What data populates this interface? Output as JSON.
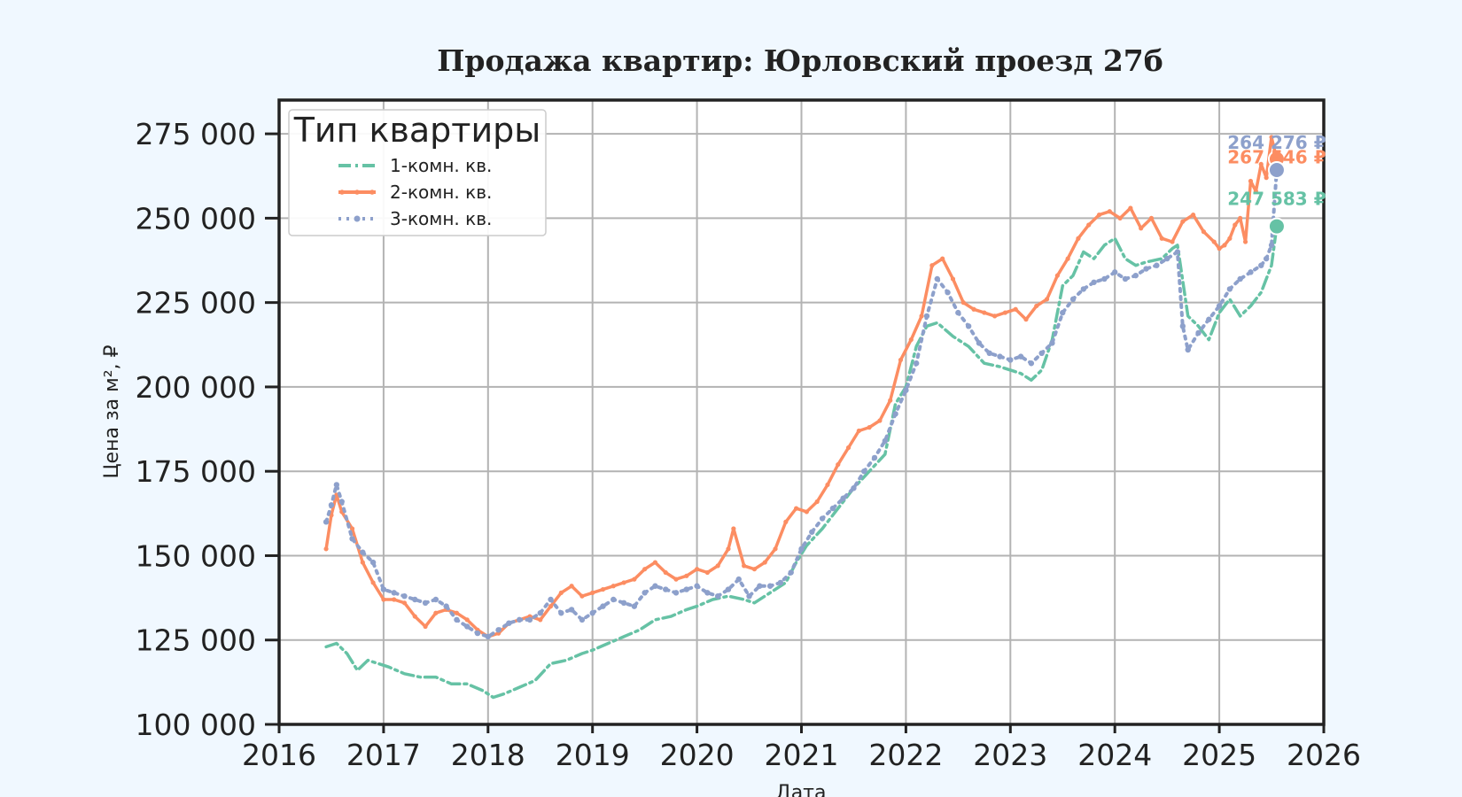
{
  "chart_data": {
    "type": "line",
    "title": "Продажа квартир: Юрловский проезд 27б",
    "xlabel": "Дата",
    "ylabel": "Цена за м², ₽",
    "xlim": [
      2016,
      2026
    ],
    "ylim": [
      100000,
      285000
    ],
    "x_ticks": [
      2016,
      2017,
      2018,
      2019,
      2020,
      2021,
      2022,
      2023,
      2024,
      2025,
      2026
    ],
    "x_tick_labels": [
      "2016",
      "2017",
      "2018",
      "2019",
      "2020",
      "2021",
      "2022",
      "2023",
      "2024",
      "2025",
      "2026"
    ],
    "y_ticks": [
      100000,
      125000,
      150000,
      175000,
      200000,
      225000,
      250000,
      275000
    ],
    "y_tick_labels": [
      "100 000",
      "125 000",
      "150 000",
      "175 000",
      "200 000",
      "225 000",
      "250 000",
      "275 000"
    ],
    "grid": true,
    "legend": {
      "title": "Тип квартиры",
      "position": "top-left",
      "entries": [
        "1-комн. кв.",
        "2-комн. кв.",
        "3-комн. кв."
      ]
    },
    "series": [
      {
        "name": "1-комн. кв.",
        "color": "#66c2a5",
        "style": "dashdot",
        "last_value": 247583,
        "last_label": "247 583 ₽",
        "x": [
          2016.45,
          2016.55,
          2016.65,
          2016.75,
          2016.85,
          2016.95,
          2017.05,
          2017.2,
          2017.35,
          2017.5,
          2017.65,
          2017.8,
          2017.95,
          2018.05,
          2018.15,
          2018.3,
          2018.45,
          2018.6,
          2018.75,
          2018.9,
          2019.0,
          2019.15,
          2019.3,
          2019.45,
          2019.6,
          2019.75,
          2019.9,
          2020.0,
          2020.15,
          2020.3,
          2020.45,
          2020.55,
          2020.7,
          2020.85,
          2020.95,
          2021.05,
          2021.2,
          2021.35,
          2021.5,
          2021.65,
          2021.8,
          2021.9,
          2022.0,
          2022.1,
          2022.2,
          2022.3,
          2022.45,
          2022.6,
          2022.75,
          2022.9,
          2023.0,
          2023.1,
          2023.2,
          2023.3,
          2023.4,
          2023.5,
          2023.6,
          2023.7,
          2023.8,
          2023.9,
          2024.0,
          2024.1,
          2024.2,
          2024.3,
          2024.45,
          2024.55,
          2024.6,
          2024.7,
          2024.8,
          2024.9,
          2025.0,
          2025.1,
          2025.2,
          2025.3,
          2025.4,
          2025.5,
          2025.55
        ],
        "y": [
          123000,
          124000,
          121000,
          116000,
          119000,
          118000,
          117000,
          115000,
          114000,
          114000,
          112000,
          112000,
          110000,
          108000,
          109000,
          111000,
          113000,
          118000,
          119000,
          121000,
          122000,
          124000,
          126000,
          128000,
          131000,
          132000,
          134000,
          135000,
          137000,
          138000,
          137000,
          136000,
          139000,
          142000,
          148000,
          153000,
          158000,
          164000,
          170000,
          175000,
          180000,
          195000,
          200000,
          212000,
          218000,
          219000,
          215000,
          212000,
          207000,
          206000,
          205000,
          204000,
          202000,
          205000,
          214000,
          230000,
          233000,
          240000,
          238000,
          242000,
          244000,
          238000,
          236000,
          237000,
          238000,
          241000,
          242000,
          221000,
          218000,
          214000,
          222000,
          226000,
          221000,
          224000,
          228000,
          236000,
          247583
        ]
      },
      {
        "name": "2-комн. кв.",
        "color": "#fc8d62",
        "style": "solid-marker",
        "last_value": 267546,
        "last_label": "267 546 ₽",
        "x": [
          2016.45,
          2016.5,
          2016.55,
          2016.6,
          2016.7,
          2016.8,
          2016.9,
          2017.0,
          2017.1,
          2017.2,
          2017.3,
          2017.4,
          2017.5,
          2017.6,
          2017.7,
          2017.8,
          2017.9,
          2018.0,
          2018.1,
          2018.2,
          2018.3,
          2018.4,
          2018.5,
          2018.6,
          2018.7,
          2018.8,
          2018.9,
          2019.0,
          2019.1,
          2019.2,
          2019.3,
          2019.4,
          2019.5,
          2019.6,
          2019.7,
          2019.8,
          2019.9,
          2020.0,
          2020.1,
          2020.2,
          2020.3,
          2020.35,
          2020.45,
          2020.55,
          2020.65,
          2020.75,
          2020.85,
          2020.95,
          2021.05,
          2021.15,
          2021.25,
          2021.35,
          2021.45,
          2021.55,
          2021.65,
          2021.75,
          2021.85,
          2021.95,
          2022.05,
          2022.15,
          2022.25,
          2022.35,
          2022.45,
          2022.55,
          2022.65,
          2022.75,
          2022.85,
          2022.95,
          2023.05,
          2023.15,
          2023.25,
          2023.35,
          2023.45,
          2023.55,
          2023.65,
          2023.75,
          2023.85,
          2023.95,
          2024.05,
          2024.15,
          2024.25,
          2024.35,
          2024.45,
          2024.55,
          2024.65,
          2024.75,
          2024.85,
          2024.95,
          2025.0,
          2025.05,
          2025.1,
          2025.15,
          2025.2,
          2025.25,
          2025.3,
          2025.35,
          2025.4,
          2025.45,
          2025.5,
          2025.55
        ],
        "y": [
          152000,
          162000,
          168000,
          163000,
          158000,
          148000,
          142000,
          137000,
          137000,
          136000,
          132000,
          129000,
          133000,
          134000,
          133000,
          131000,
          128000,
          126000,
          127000,
          130000,
          131000,
          132000,
          131000,
          135000,
          139000,
          141000,
          138000,
          139000,
          140000,
          141000,
          142000,
          143000,
          146000,
          148000,
          145000,
          143000,
          144000,
          146000,
          145000,
          147000,
          152000,
          158000,
          147000,
          146000,
          148000,
          152000,
          160000,
          164000,
          163000,
          166000,
          171000,
          177000,
          182000,
          187000,
          188000,
          190000,
          196000,
          208000,
          214000,
          221000,
          236000,
          238000,
          232000,
          225000,
          223000,
          222000,
          221000,
          222000,
          223000,
          220000,
          224000,
          226000,
          233000,
          238000,
          244000,
          248000,
          251000,
          252000,
          250000,
          253000,
          247000,
          250000,
          244000,
          243000,
          249000,
          251000,
          246000,
          243000,
          241000,
          242000,
          244000,
          248000,
          250000,
          243000,
          261000,
          258000,
          266000,
          262000,
          274000,
          267546
        ]
      },
      {
        "name": "3-комн. кв.",
        "color": "#8da0cb",
        "style": "dotted-marker",
        "last_value": 264276,
        "last_label": "264 276 ₽",
        "x": [
          2016.45,
          2016.5,
          2016.55,
          2016.6,
          2016.7,
          2016.8,
          2016.9,
          2017.0,
          2017.1,
          2017.2,
          2017.3,
          2017.4,
          2017.5,
          2017.6,
          2017.7,
          2017.8,
          2017.9,
          2018.0,
          2018.1,
          2018.2,
          2018.3,
          2018.4,
          2018.5,
          2018.6,
          2018.7,
          2018.8,
          2018.9,
          2019.0,
          2019.1,
          2019.2,
          2019.3,
          2019.4,
          2019.5,
          2019.6,
          2019.7,
          2019.8,
          2019.9,
          2020.0,
          2020.1,
          2020.2,
          2020.3,
          2020.4,
          2020.5,
          2020.6,
          2020.7,
          2020.8,
          2020.9,
          2021.0,
          2021.1,
          2021.2,
          2021.3,
          2021.4,
          2021.5,
          2021.6,
          2021.7,
          2021.8,
          2021.9,
          2022.0,
          2022.1,
          2022.2,
          2022.3,
          2022.4,
          2022.5,
          2022.6,
          2022.7,
          2022.8,
          2022.9,
          2023.0,
          2023.1,
          2023.2,
          2023.3,
          2023.4,
          2023.5,
          2023.6,
          2023.7,
          2023.8,
          2023.9,
          2024.0,
          2024.1,
          2024.2,
          2024.3,
          2024.4,
          2024.5,
          2024.6,
          2024.65,
          2024.7,
          2024.8,
          2024.9,
          2025.0,
          2025.1,
          2025.2,
          2025.3,
          2025.4,
          2025.45,
          2025.5,
          2025.55
        ],
        "y": [
          160000,
          165000,
          171000,
          166000,
          155000,
          151000,
          148000,
          140000,
          139000,
          138000,
          137000,
          136000,
          137000,
          135000,
          131000,
          129000,
          127000,
          126000,
          128000,
          130000,
          131000,
          131000,
          133000,
          137000,
          133000,
          134000,
          131000,
          133000,
          135000,
          137000,
          136000,
          135000,
          139000,
          141000,
          140000,
          139000,
          140000,
          141000,
          139000,
          138000,
          140000,
          143000,
          138000,
          141000,
          141000,
          142000,
          145000,
          152000,
          157000,
          161000,
          164000,
          167000,
          170000,
          175000,
          179000,
          184000,
          192000,
          199000,
          207000,
          221000,
          232000,
          228000,
          222000,
          218000,
          213000,
          210000,
          209000,
          208000,
          209000,
          207000,
          210000,
          213000,
          222000,
          226000,
          229000,
          231000,
          232000,
          234000,
          232000,
          233000,
          235000,
          236000,
          238000,
          240000,
          218000,
          211000,
          216000,
          220000,
          224000,
          229000,
          232000,
          234000,
          236000,
          238000,
          242000,
          264276
        ]
      }
    ]
  }
}
